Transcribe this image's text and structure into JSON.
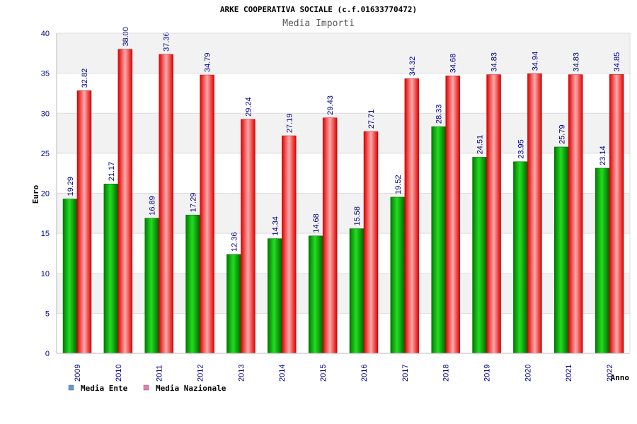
{
  "chart_data": {
    "type": "bar",
    "title": "ARKE COOPERATIVA SOCIALE (c.f.01633770472)",
    "subtitle": "Media Importi",
    "xlabel": "Anno",
    "ylabel": "Euro",
    "ylim": [
      0,
      40
    ],
    "yticks": [
      0,
      5,
      10,
      15,
      20,
      25,
      30,
      35,
      40
    ],
    "grid": true,
    "legend_position": "bottom-left",
    "categories": [
      "2009",
      "2010",
      "2011",
      "2012",
      "2013",
      "2014",
      "2015",
      "2016",
      "2017",
      "2018",
      "2019",
      "2020",
      "2021",
      "2022"
    ],
    "series": [
      {
        "name": "Media Ente",
        "color": "#00aa00",
        "legend_color": "#5b9bd5",
        "values": [
          19.29,
          21.17,
          16.89,
          17.29,
          12.36,
          14.34,
          14.68,
          15.58,
          19.52,
          28.33,
          24.51,
          23.95,
          25.79,
          23.14
        ],
        "labels": [
          "19.29",
          "21.17",
          "16.89",
          "17.29",
          "12.36",
          "14.34",
          "14.68",
          "15.58",
          "19.52",
          "28.33",
          "24.51",
          "23.95",
          "25.79",
          "23.14"
        ]
      },
      {
        "name": "Media Nazionale",
        "color": "#ee1111",
        "legend_color": "#e37fb1",
        "values": [
          32.82,
          38.0,
          37.36,
          34.79,
          29.24,
          27.19,
          29.43,
          27.71,
          34.32,
          34.68,
          34.83,
          34.94,
          34.83,
          34.85
        ],
        "labels": [
          "32.82",
          "38.00",
          "37.36",
          "34.79",
          "29.24",
          "27.19",
          "29.43",
          "27.71",
          "34.32",
          "34.68",
          "34.83",
          "34.94",
          "34.83",
          "34.85"
        ]
      }
    ]
  }
}
